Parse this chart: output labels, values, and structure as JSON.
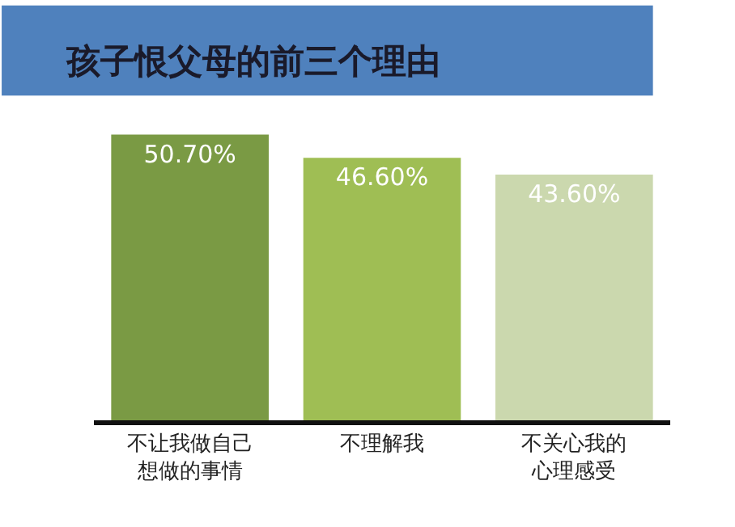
{
  "chart_data": {
    "type": "bar",
    "title": "孩子恨父母的前三个理由",
    "categories": [
      "不让我做自己想做的事情",
      "不理解我",
      "不关心我的心理感受"
    ],
    "values": [
      50.7,
      46.6,
      43.6
    ],
    "value_labels": [
      "50.70%",
      "46.60%",
      "43.60%"
    ],
    "colors": [
      "#7a9a44",
      "#9fbe54",
      "#cbd8ae"
    ],
    "tick_labels": "x"
  }
}
